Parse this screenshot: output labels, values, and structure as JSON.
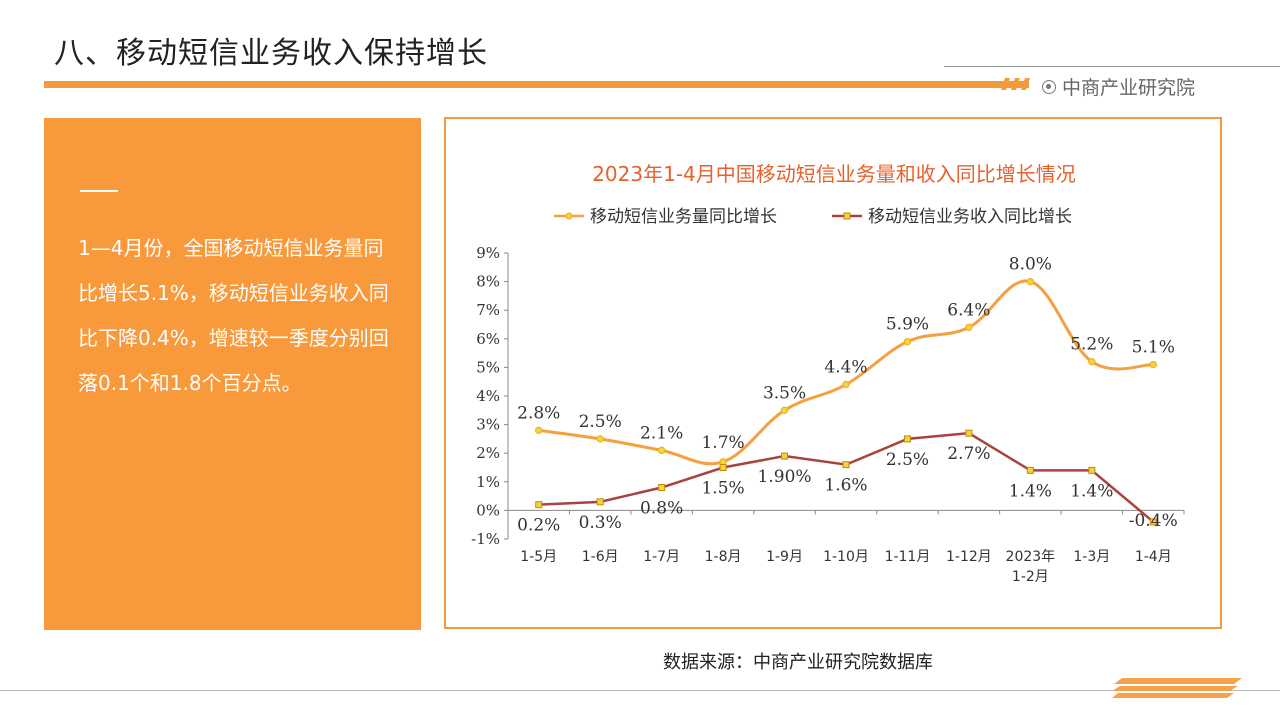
{
  "page": {
    "title": "八、移动短信业务收入保持增长",
    "brand": "中商产业研究院",
    "source": "数据来源：中商产业研究院数据库"
  },
  "colors": {
    "accent": "#f8993c",
    "series1": "#f5a03e",
    "series2": "#a8433f",
    "title_text": "#e8612c"
  },
  "panel": {
    "text": "1—4月份，全国移动短信业务量同比增长5.1%，移动短信业务收入同比下降0.4%，增速较一季度分别回落0.1个和1.8个百分点。"
  },
  "chart_data": {
    "type": "line",
    "title": "2023年1-4月中国移动短信业务量和收入同比增长情况",
    "categories": [
      "1-5月",
      "1-6月",
      "1-7月",
      "1-8月",
      "1-9月",
      "1-10月",
      "1-11月",
      "1-12月",
      "2023年\n1-2月",
      "1-3月",
      "1-4月"
    ],
    "ylim": [
      -1,
      9
    ],
    "yticks": [
      "-1%",
      "0%",
      "1%",
      "2%",
      "3%",
      "4%",
      "5%",
      "6%",
      "7%",
      "8%",
      "9%"
    ],
    "grid": false,
    "legend": "top",
    "series": [
      {
        "name": "移动短信业务量同比增长",
        "values": [
          2.8,
          2.5,
          2.1,
          1.7,
          3.5,
          4.4,
          5.9,
          6.4,
          8.0,
          5.2,
          5.1
        ],
        "labels": [
          "2.8%",
          "2.5%",
          "2.1%",
          "1.7%",
          "3.5%",
          "4.4%",
          "5.9%",
          "6.4%",
          "8.0%",
          "5.2%",
          "5.1%"
        ]
      },
      {
        "name": "移动短信业务收入同比增长",
        "values": [
          0.2,
          0.3,
          0.8,
          1.5,
          1.9,
          1.6,
          2.5,
          2.7,
          1.4,
          1.4,
          -0.4
        ],
        "labels": [
          "0.2%",
          "0.3%",
          "0.8%",
          "1.5%",
          "1.90%",
          "1.6%",
          "2.5%",
          "2.7%",
          "1.4%",
          "1.4%",
          "-0.4%"
        ]
      }
    ]
  }
}
